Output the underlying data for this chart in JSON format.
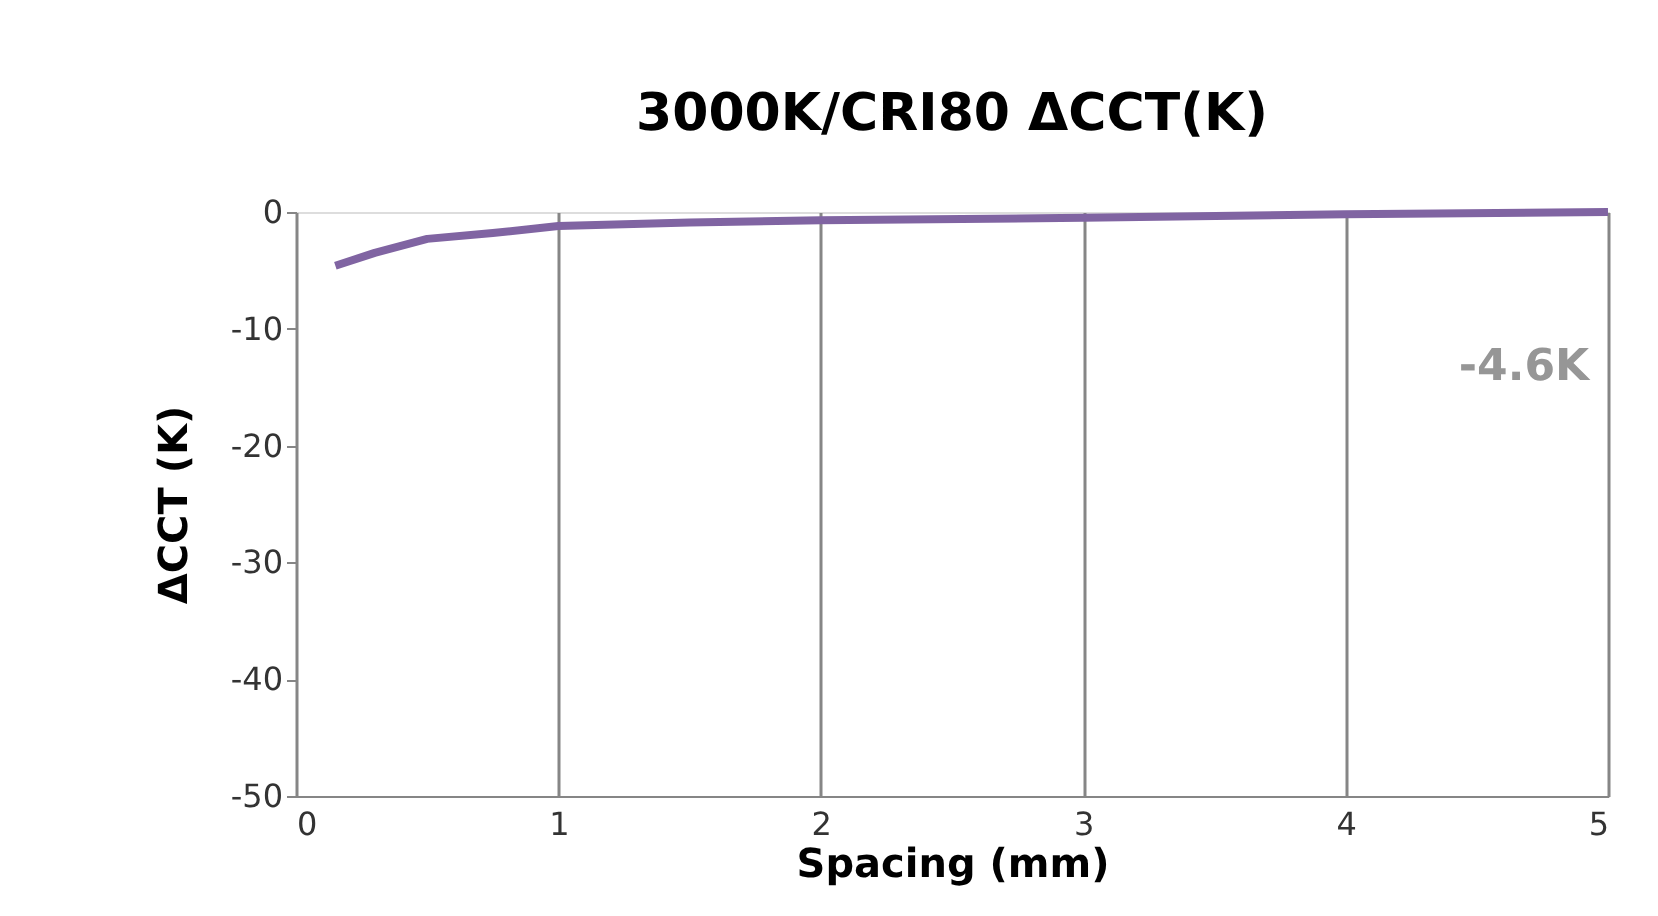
{
  "chart_data": {
    "type": "line",
    "title": "3000K/CRI80   ΔCCT(K)",
    "xlabel": "Spacing (mm)",
    "ylabel": "ΔCCT (K)",
    "x": [
      0.15,
      0.3,
      0.5,
      0.75,
      1,
      1.5,
      2,
      3,
      4,
      5
    ],
    "series": [
      {
        "color": "#8064a2",
        "values": [
          -4.6,
          -3.5,
          -2.3,
          -1.8,
          -1.2,
          -0.9,
          -0.7,
          -0.5,
          -0.2,
          0
        ]
      }
    ],
    "xlim": [
      0,
      5
    ],
    "xticks": [
      0,
      1,
      2,
      3,
      4,
      5
    ],
    "ylim": [
      -50,
      0
    ],
    "yticks": [
      -50,
      -40,
      -30,
      -20,
      -10,
      0
    ],
    "grid": "x",
    "marker": "none",
    "line_style": "solid",
    "annotations": [
      "-4.6K"
    ]
  }
}
